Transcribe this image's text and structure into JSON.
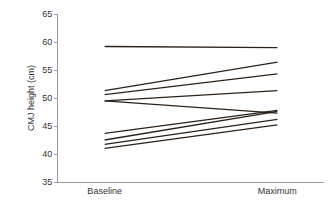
{
  "chart_data": {
    "type": "line",
    "y_label": "CMJ height (cm)",
    "categories": [
      "Baseline",
      "Maximum"
    ],
    "color": "#2b2118",
    "series": [
      {
        "values": [
          59.2,
          59.0
        ]
      },
      {
        "values": [
          51.3,
          56.4
        ]
      },
      {
        "values": [
          50.6,
          54.3
        ]
      },
      {
        "values": [
          49.5,
          51.3
        ]
      },
      {
        "values": [
          49.5,
          47.3
        ]
      },
      {
        "values": [
          43.7,
          47.8
        ]
      },
      {
        "values": [
          42.5,
          47.6
        ]
      },
      {
        "values": [
          41.7,
          46.2
        ]
      },
      {
        "values": [
          41.0,
          45.2
        ]
      }
    ],
    "ylim": [
      35,
      65
    ],
    "yticks": [
      35,
      40,
      45,
      50,
      55,
      60,
      65
    ],
    "grid": false
  }
}
